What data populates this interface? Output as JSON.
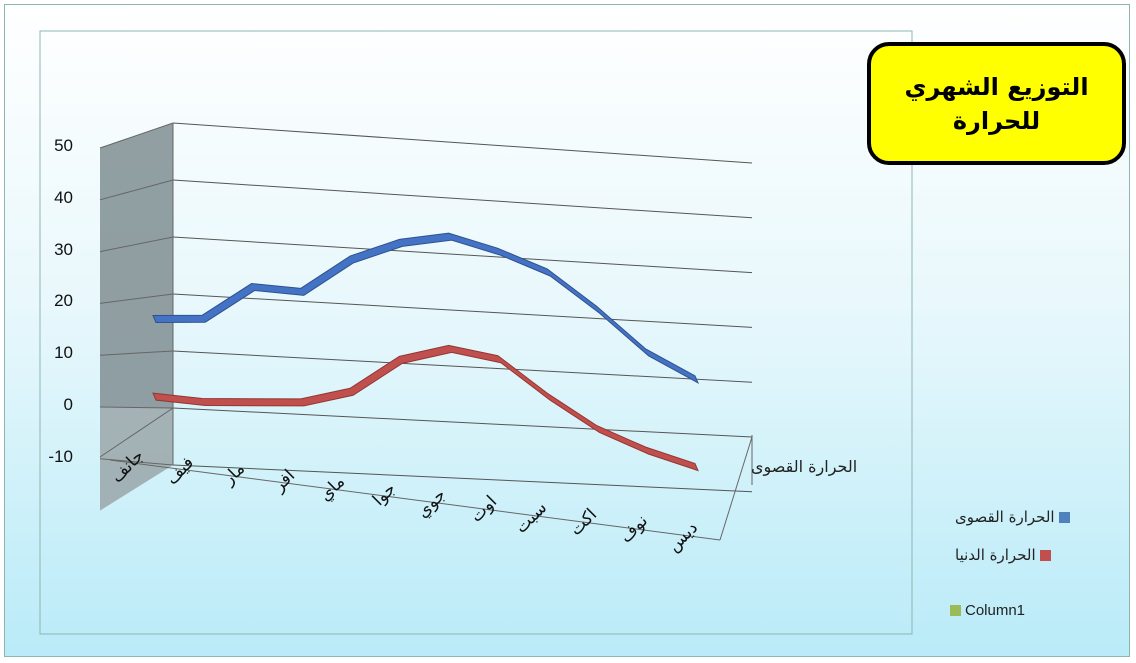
{
  "chart_data": {
    "type": "line",
    "title_lines": [
      "التوزيع الشهري",
      "للحرارة"
    ],
    "categories": [
      "جانف",
      "فيف",
      "مار",
      "افر",
      "ماي",
      "جوا",
      "جوي",
      "اوت",
      "سبت",
      "اكت",
      "نوف",
      "ديس"
    ],
    "series": [
      {
        "name": "الحرارة القصوى",
        "color": "#4472c4",
        "values": [
          17,
          18,
          25,
          25,
          32,
          36,
          38,
          36,
          33,
          27,
          20,
          16
        ]
      },
      {
        "name": "الحرارة الدنيا",
        "color": "#c0504d",
        "values": [
          2,
          2,
          3,
          4,
          7,
          14,
          17,
          16,
          10,
          5,
          2,
          0
        ]
      }
    ],
    "legend": [
      {
        "label": "الحرارة القصوى",
        "color": "#4f81bd"
      },
      {
        "label": "الحرارة الدنيا",
        "color": "#c0504d"
      },
      {
        "label": "Column1",
        "color": "#9bbb59"
      }
    ],
    "series_axis_label": "الحرارة القصوى",
    "yticks": [
      "50",
      "40",
      "30",
      "20",
      "10",
      "0",
      "-10"
    ],
    "ylim": [
      -10,
      50
    ],
    "grid": true,
    "legend_position": "right"
  }
}
